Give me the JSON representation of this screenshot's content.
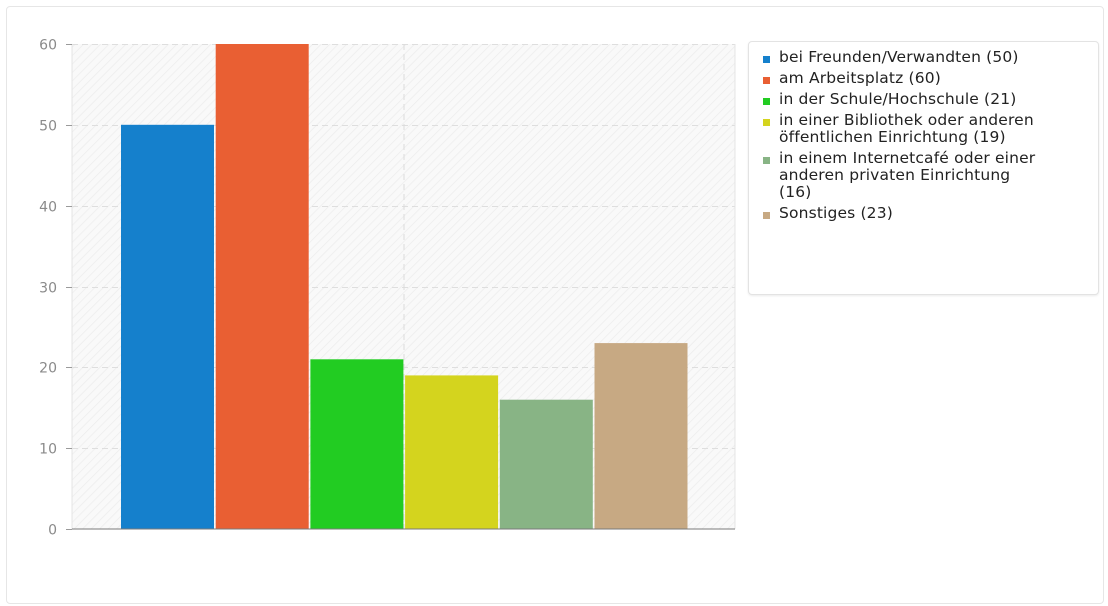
{
  "chart_data": {
    "type": "bar",
    "ylim": [
      0,
      60
    ],
    "yticks": [
      0,
      10,
      20,
      30,
      40,
      50,
      60
    ],
    "grid": true,
    "legend_position": "right",
    "series": [
      {
        "name": "bei Freunden/Verwandten (50)",
        "value": 50,
        "color": "#1580cc"
      },
      {
        "name": "am Arbeitsplatz (60)",
        "value": 60,
        "color": "#e95f33"
      },
      {
        "name": "in der Schule/Hochschule (21)",
        "value": 21,
        "color": "#22cc22"
      },
      {
        "name": "in einer Bibliothek oder anderen öffentlichen Einrichtung (19)",
        "value": 19,
        "color": "#d4d41e"
      },
      {
        "name": "in einem Internetcafé oder einer anderen privaten Einrichtung (16)",
        "value": 16,
        "color": "#88b485"
      },
      {
        "name": "Sonstiges (23)",
        "value": 23,
        "color": "#c7a983"
      }
    ]
  }
}
